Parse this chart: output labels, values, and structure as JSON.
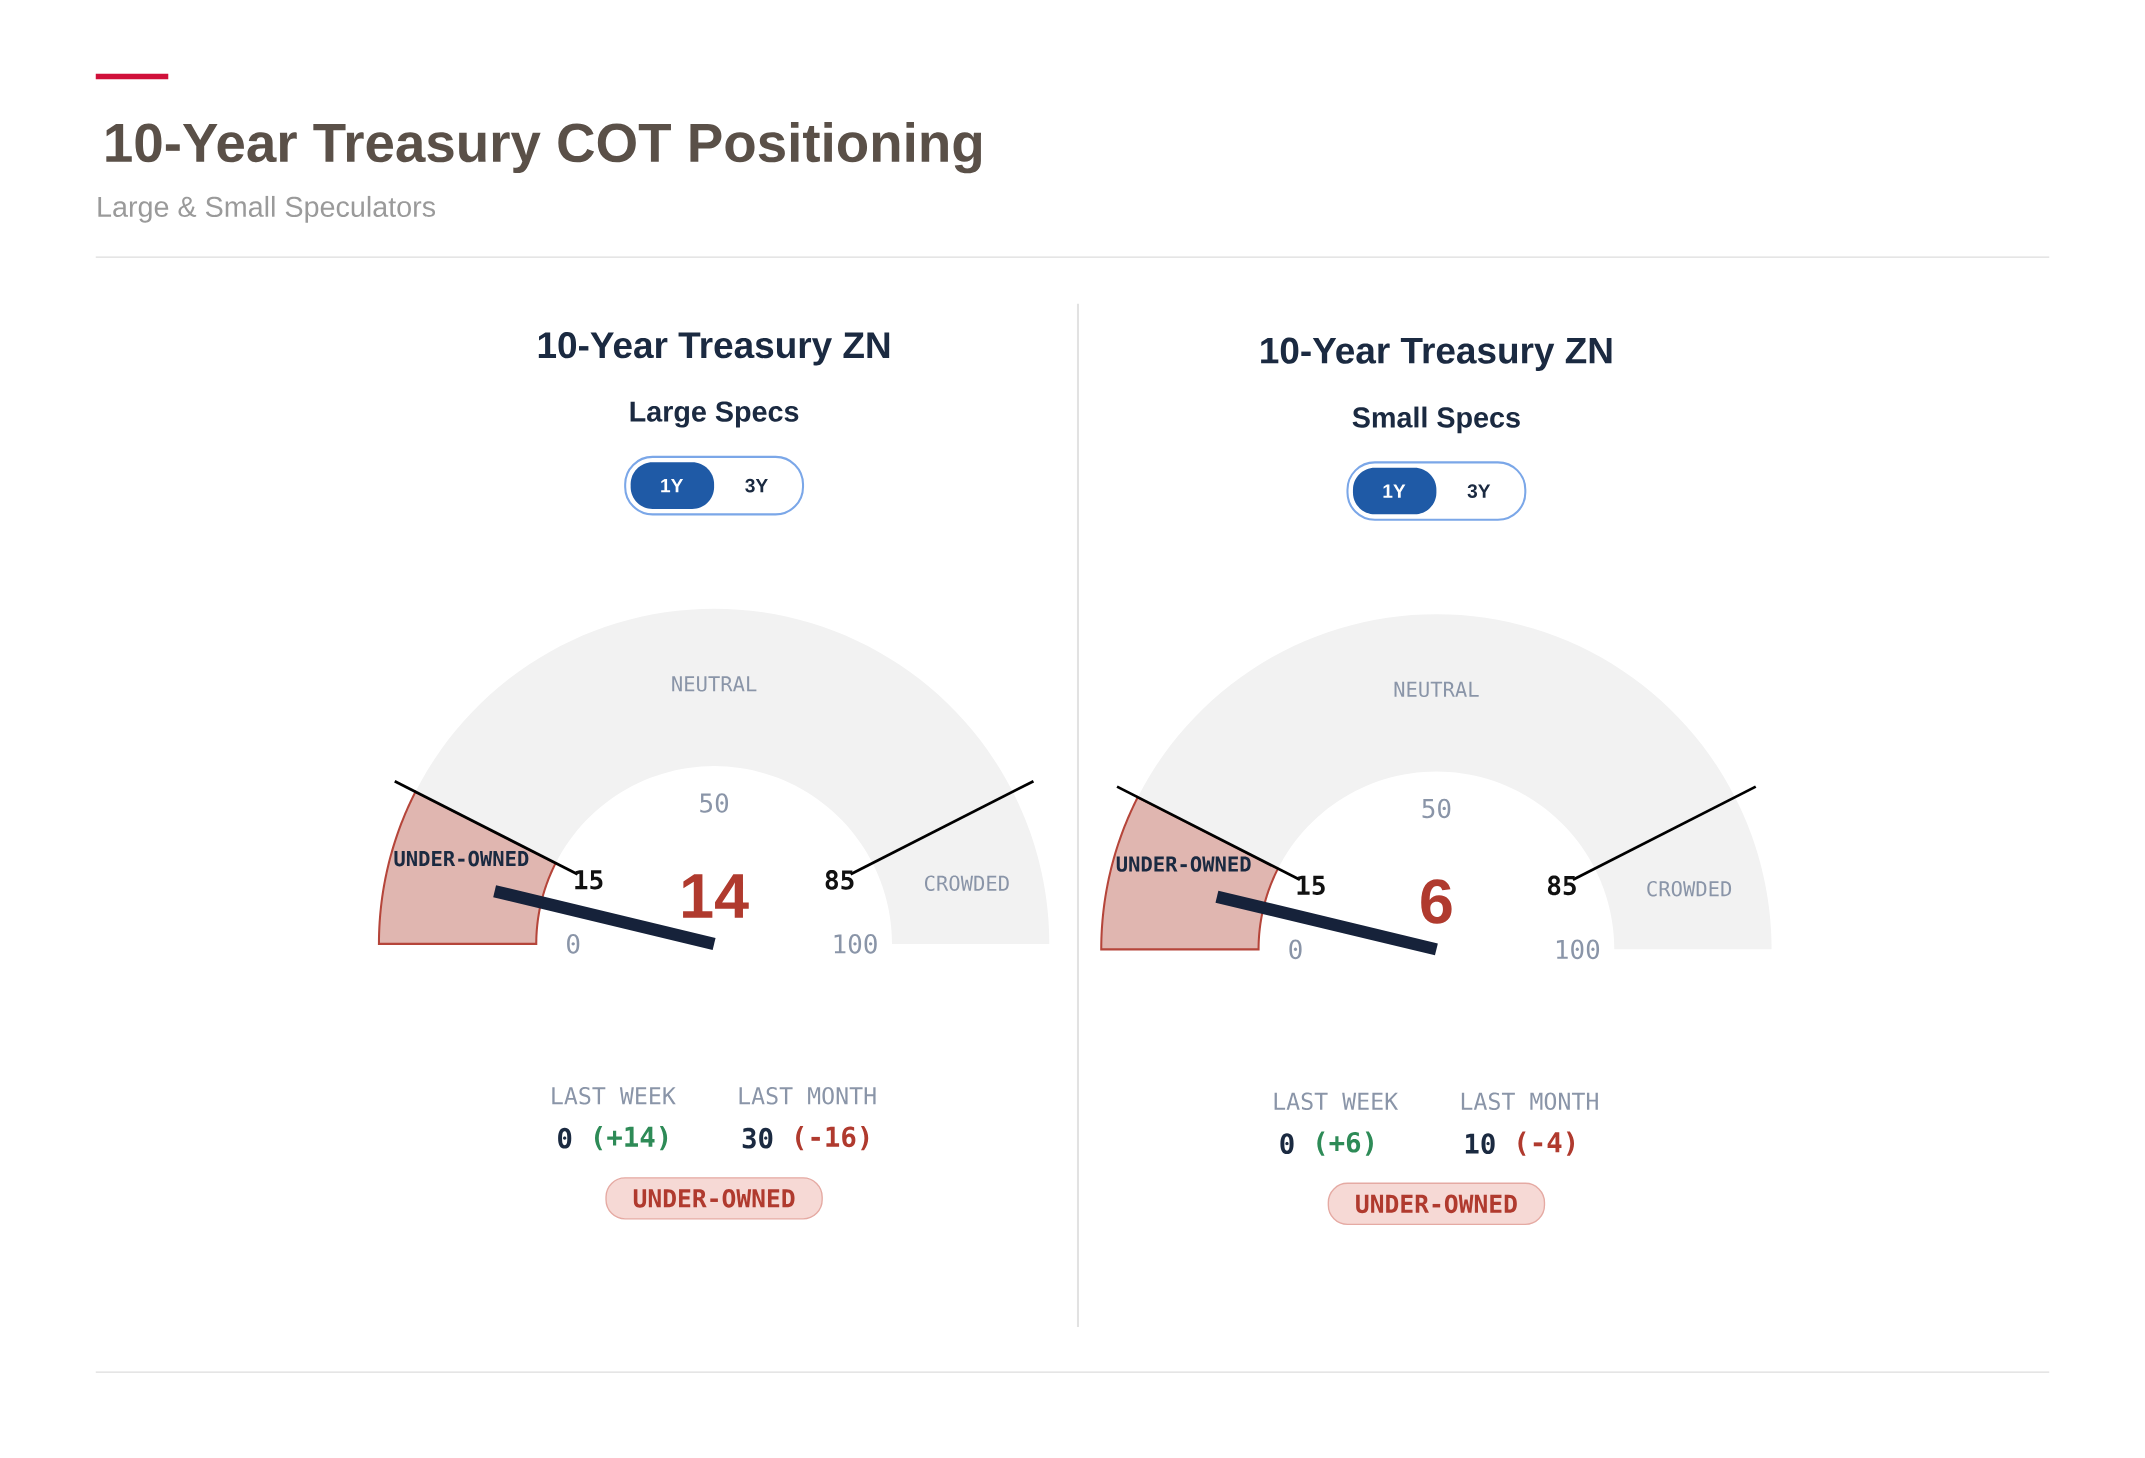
{
  "chart_data": [
    {
      "type": "other",
      "title": "10-Year Treasury COT Positioning",
      "subtitle": "Large & Small Speculators"
    },
    {
      "type": "donut",
      "title": "10-Year Treasury ZN",
      "subtitle": "Large Specs",
      "categories": [
        "UNDER-OWNED",
        "NEUTRAL",
        "CROWDED"
      ],
      "values": [
        15,
        70,
        15
      ],
      "colors": [
        "#e0b6b0",
        "#f2f2f2",
        "#f2f2f2"
      ],
      "needle": "UNDER-OWNED",
      "annotations": [
        "14",
        "LAST WEEK",
        "0",
        "(+14)",
        "LAST MONTH",
        "30",
        "(-16)",
        "UNDER-OWNED",
        "1Y",
        "3Y",
        "0",
        "15",
        "50",
        "85",
        "100"
      ]
    },
    {
      "type": "donut",
      "title": "10-Year Treasury ZN",
      "subtitle": "Small Specs",
      "categories": [
        "UNDER-OWNED",
        "NEUTRAL",
        "CROWDED"
      ],
      "values": [
        15,
        70,
        15
      ],
      "colors": [
        "#e0b6b0",
        "#f2f2f2",
        "#f2f2f2"
      ],
      "needle": "UNDER-OWNED",
      "annotations": [
        "6",
        "LAST WEEK",
        "0",
        "(+6)",
        "LAST MONTH",
        "10",
        "(-4)",
        "UNDER-OWNED",
        "1Y",
        "3Y",
        "0",
        "15",
        "50",
        "85",
        "100"
      ]
    }
  ]
}
